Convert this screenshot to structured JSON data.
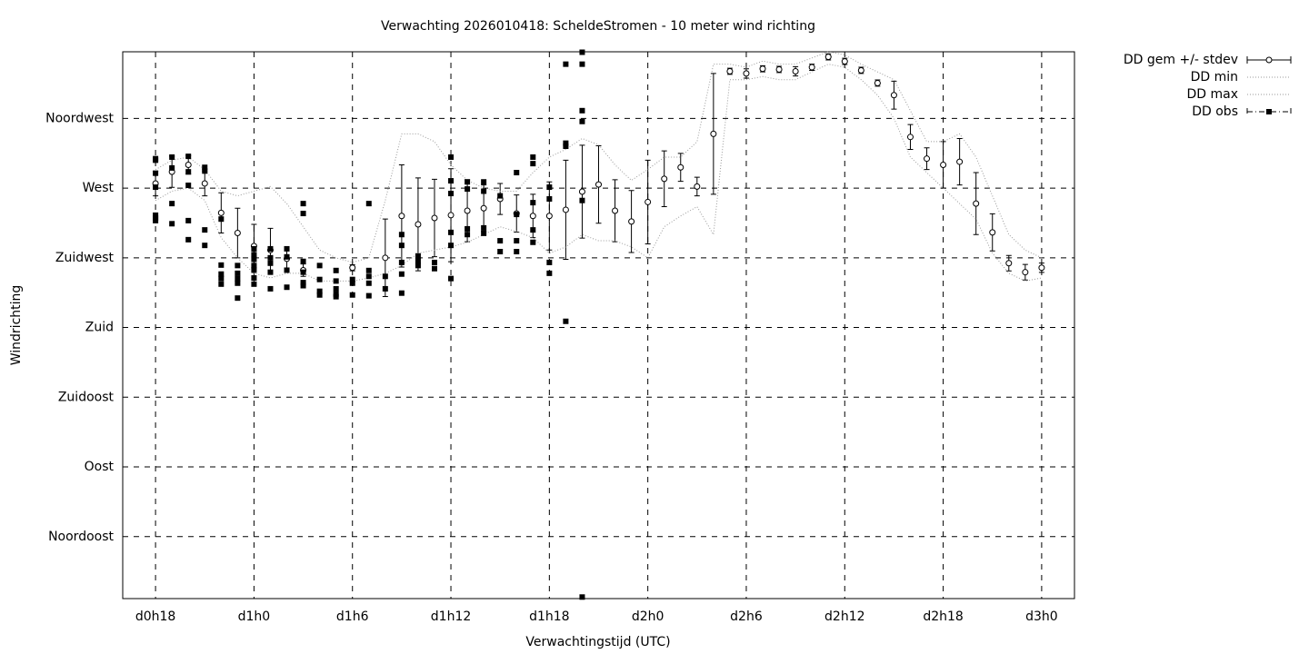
{
  "chart_data": {
    "type": "line",
    "title": "Verwachting 2026010418: ScheldeStromen - 10 meter wind richting",
    "x_label": "Verwachtingstijd (UTC)",
    "y_label": "Windrichting",
    "xlim": [
      16,
      74
    ],
    "ylim": [
      5,
      358
    ],
    "xticks": [
      {
        "value": 18,
        "label": "d0h18"
      },
      {
        "value": 24,
        "label": "d1h0"
      },
      {
        "value": 30,
        "label": "d1h6"
      },
      {
        "value": 36,
        "label": "d1h12"
      },
      {
        "value": 42,
        "label": "d1h18"
      },
      {
        "value": 48,
        "label": "d2h0"
      },
      {
        "value": 54,
        "label": "d2h6"
      },
      {
        "value": 60,
        "label": "d2h12"
      },
      {
        "value": 66,
        "label": "d2h18"
      },
      {
        "value": 72,
        "label": "d3h0"
      }
    ],
    "yticks": [
      {
        "value": 45,
        "label": "Noordoost"
      },
      {
        "value": 90,
        "label": "Oost"
      },
      {
        "value": 135,
        "label": "Zuidoost"
      },
      {
        "value": 180,
        "label": "Zuid"
      },
      {
        "value": 225,
        "label": "Zuidwest"
      },
      {
        "value": 270,
        "label": "West"
      },
      {
        "value": 315,
        "label": "Noordwest"
      }
    ],
    "grid": true,
    "legend": "top-right-outside",
    "x": [
      18,
      19,
      20,
      21,
      22,
      23,
      24,
      25,
      26,
      27,
      28,
      29,
      30,
      31,
      32,
      33,
      34,
      35,
      36,
      37,
      38,
      39,
      40,
      41,
      42,
      43,
      44,
      45,
      46,
      47,
      48,
      49,
      50,
      51,
      52,
      53,
      54,
      55,
      56,
      57,
      58,
      59,
      60,
      61,
      62,
      63,
      64,
      65,
      66,
      67,
      68,
      69,
      70,
      71,
      72
    ],
    "series": [
      {
        "name": "DD gem +/- stdev",
        "style": "errorbar",
        "color": "#000000",
        "values": [
          273,
          280.5,
          285,
          273,
          254,
          241,
          232.6,
          230,
          224.4,
          217,
          null,
          null,
          218.6,
          null,
          225,
          252,
          246.6,
          250.7,
          252.5,
          255.4,
          257,
          263,
          253.6,
          252,
          252,
          256,
          267.7,
          272.3,
          255.4,
          248.4,
          261,
          276,
          283.4,
          271,
          305,
          345.4,
          344,
          347,
          346.6,
          345.4,
          348,
          354.7,
          351.8,
          346,
          337.8,
          330,
          303,
          289,
          285,
          287,
          260,
          241.4,
          221.5,
          215.7,
          218.6
        ],
        "errors": [
          8,
          10,
          6,
          8,
          13,
          16,
          14,
          14,
          6,
          4,
          null,
          null,
          2,
          null,
          25,
          33,
          30,
          25,
          30,
          20,
          15,
          10,
          12,
          14,
          22,
          32,
          30,
          25,
          20,
          20,
          27,
          18,
          9,
          6,
          39,
          2,
          3,
          2,
          2,
          3,
          2,
          2,
          2,
          2,
          2,
          9,
          8,
          7,
          15,
          15,
          20,
          12,
          5,
          5,
          3
        ]
      },
      {
        "name": "DD min",
        "style": "dotted",
        "color": "#999999",
        "values": [
          262,
          268,
          270,
          262,
          238,
          225,
          215,
          212,
          215,
          215,
          210,
          210,
          210,
          212,
          215,
          220,
          228,
          230,
          232,
          235,
          240,
          245,
          242,
          238,
          228,
          232,
          240,
          236,
          236,
          232,
          225,
          245,
          252,
          258,
          240,
          340,
          340,
          342,
          340,
          340,
          345,
          350,
          348,
          340,
          330,
          315,
          290,
          280,
          270,
          260,
          250,
          228,
          215,
          210,
          212
        ]
      },
      {
        "name": "DD max",
        "style": "dotted",
        "color": "#999999",
        "values": [
          282,
          288,
          290,
          282,
          268,
          265,
          268,
          271,
          260,
          245,
          230,
          225,
          222,
          225,
          262,
          305,
          305,
          300,
          285,
          275,
          270,
          268,
          268,
          280,
          290,
          295,
          302,
          298,
          285,
          275,
          282,
          290,
          290,
          300,
          350,
          350,
          348,
          352,
          350,
          350,
          354,
          358,
          356,
          350,
          345,
          340,
          320,
          300,
          300,
          305,
          290,
          265,
          240,
          230,
          225
        ]
      },
      {
        "name": "DD obs",
        "style": "points",
        "color": "#000000",
        "x": [
          18,
          18,
          18,
          18,
          18,
          18,
          18,
          19,
          19,
          19,
          19,
          20,
          20,
          20,
          20,
          20,
          21,
          21,
          21,
          21,
          22,
          22,
          22,
          22,
          22,
          23,
          23,
          23,
          23,
          23,
          24,
          24,
          24,
          24,
          24,
          24,
          24,
          25,
          25,
          25,
          25,
          25,
          26,
          26,
          26,
          26,
          27,
          27,
          27,
          27,
          27,
          27,
          28,
          28,
          28,
          28,
          29,
          29,
          29,
          29,
          29,
          30,
          30,
          30,
          31,
          31,
          31,
          31,
          31,
          32,
          32,
          33,
          33,
          33,
          33,
          33,
          34,
          34,
          34,
          35,
          35,
          36,
          36,
          36,
          36,
          36,
          36,
          37,
          37,
          37,
          37,
          38,
          38,
          38,
          38,
          39,
          39,
          39,
          40,
          40,
          40,
          40,
          41,
          41,
          41,
          41,
          41,
          42,
          42,
          42,
          42,
          43,
          43,
          43,
          43,
          44,
          44,
          44,
          44,
          44,
          44
        ],
        "values": [
          289,
          288,
          279.6,
          270.6,
          252.5,
          250.7,
          249,
          290,
          283,
          260,
          247,
          290.5,
          280.5,
          271.8,
          249,
          236.7,
          283.4,
          281,
          243,
          233,
          250,
          220.3,
          214.5,
          211.6,
          208,
          220,
          215,
          211.6,
          208.6,
          199,
          230.8,
          227,
          224,
          220,
          217,
          212,
          208,
          230.8,
          225,
          221.5,
          215.7,
          205,
          230.8,
          225.6,
          217,
          206,
          260,
          253.6,
          222.7,
          215.7,
          209,
          207,
          220,
          211,
          203.4,
          201,
          216.8,
          210,
          205,
          201.6,
          199.9,
          211,
          208.6,
          201,
          260,
          216.8,
          213,
          208.6,
          200.5,
          213,
          205,
          240,
          233,
          222,
          214.5,
          202.2,
          226.2,
          223,
          220,
          222,
          218,
          290,
          274.7,
          266.5,
          241.4,
          233,
          211.6,
          274,
          269.4,
          243.7,
          240,
          274,
          268,
          244.3,
          240.8,
          265,
          236,
          229,
          280,
          253,
          236,
          229,
          290,
          285.8,
          260.6,
          243,
          235,
          270.6,
          263,
          222,
          215,
          350,
          299,
          297,
          184,
          357.7,
          350,
          320,
          313,
          262,
          6
        ]
      }
    ]
  }
}
